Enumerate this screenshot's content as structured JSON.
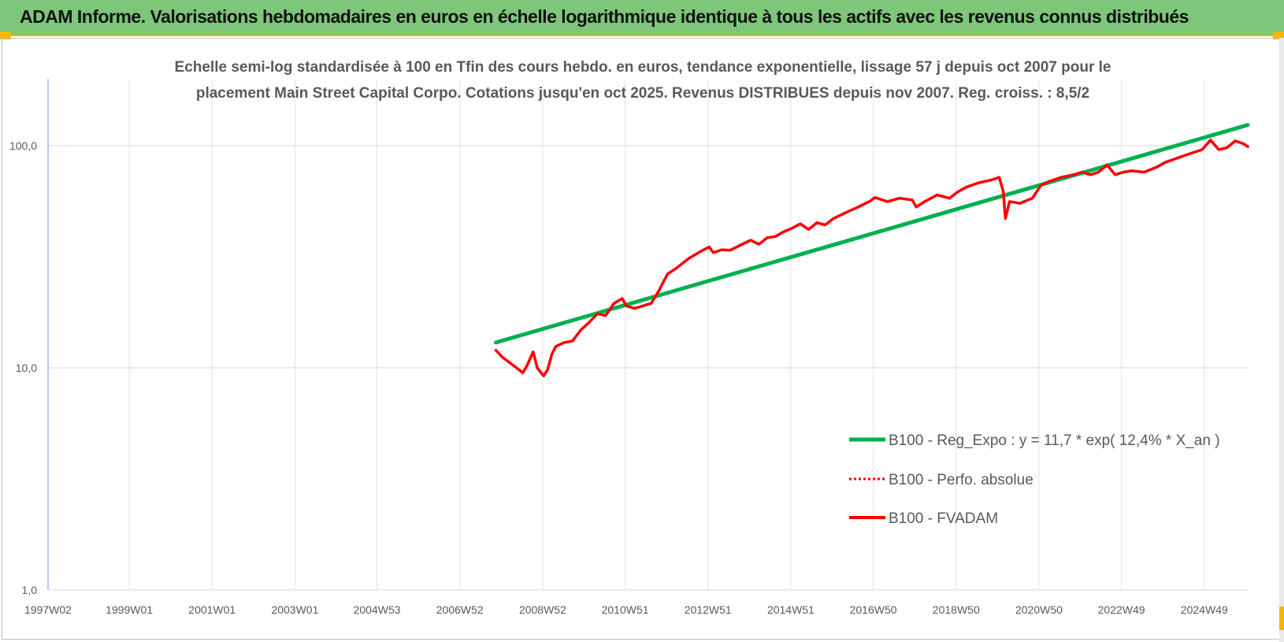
{
  "banner": {
    "title": "ADAM Informe. Valorisations hebdomadaires en euros en échelle logarithmique identique à tous les actifs avec les revenus connus distribués",
    "background": "#7dc67a"
  },
  "chart_data": {
    "type": "line",
    "title_lines": [
      "Echelle semi-log standardisée à 100 en Tfin des cours hebdo. en euros, tendance exponentielle, lissage 57 j depuis oct 2007 pour le",
      "placement Main Street Capital Corpo. Cotations jusqu'en oct 2025. Revenus DISTRIBUES depuis nov 2007. Reg. croiss. : 8,5/2"
    ],
    "xlabel": "",
    "ylabel": "",
    "y_scale": "log",
    "ylim": [
      1,
      200
    ],
    "grid": true,
    "legend_position": "bottom-right",
    "y_ticks": [
      {
        "value": 1,
        "label": "1,0"
      },
      {
        "value": 10,
        "label": "10,0"
      },
      {
        "value": 100,
        "label": "100,0"
      }
    ],
    "x_range": [
      1997.04,
      2026.0
    ],
    "x_ticks": [
      {
        "value": 1997.04,
        "label": "1997W02"
      },
      {
        "value": 1999.0,
        "label": "1999W01"
      },
      {
        "value": 2001.0,
        "label": "2001W01"
      },
      {
        "value": 2003.0,
        "label": "2003W01"
      },
      {
        "value": 2004.98,
        "label": "2004W53"
      },
      {
        "value": 2006.98,
        "label": "2006W52"
      },
      {
        "value": 2008.98,
        "label": "2008W52"
      },
      {
        "value": 2010.97,
        "label": "2010W51"
      },
      {
        "value": 2012.97,
        "label": "2012W51"
      },
      {
        "value": 2014.97,
        "label": "2014W51"
      },
      {
        "value": 2016.96,
        "label": "2016W50"
      },
      {
        "value": 2018.96,
        "label": "2018W50"
      },
      {
        "value": 2020.96,
        "label": "2020W50"
      },
      {
        "value": 2022.95,
        "label": "2022W49"
      },
      {
        "value": 2024.95,
        "label": "2024W49"
      }
    ],
    "series": [
      {
        "name": "B100 - Reg_Expo : y = 11,7 * exp( 12,4% *  X_an )",
        "color": "#00b050",
        "style": "solid",
        "x": [
          2007.85,
          2026.0
        ],
        "y": [
          13.0,
          124.0
        ]
      },
      {
        "name": "B100 - Perfo. absolue",
        "color": "#ff0000",
        "style": "dotted",
        "x": [],
        "y": []
      },
      {
        "name": "B100 - FVADAM",
        "color": "#ff0000",
        "style": "solid",
        "x": [
          2007.85,
          2008.0,
          2008.2,
          2008.35,
          2008.5,
          2008.6,
          2008.75,
          2008.85,
          2009.0,
          2009.1,
          2009.2,
          2009.3,
          2009.5,
          2009.7,
          2009.9,
          2010.1,
          2010.3,
          2010.5,
          2010.7,
          2010.9,
          2011.0,
          2011.2,
          2011.4,
          2011.6,
          2011.8,
          2011.9,
          2012.0,
          2012.2,
          2012.5,
          2012.8,
          2013.0,
          2013.1,
          2013.3,
          2013.5,
          2013.8,
          2014.0,
          2014.2,
          2014.4,
          2014.6,
          2014.8,
          2015.0,
          2015.2,
          2015.4,
          2015.6,
          2015.8,
          2016.0,
          2016.3,
          2016.6,
          2016.9,
          2017.0,
          2017.3,
          2017.6,
          2017.9,
          2018.0,
          2018.2,
          2018.5,
          2018.8,
          2019.0,
          2019.2,
          2019.5,
          2019.8,
          2020.0,
          2020.1,
          2020.15,
          2020.25,
          2020.5,
          2020.8,
          2021.0,
          2021.2,
          2021.5,
          2021.8,
          2022.0,
          2022.2,
          2022.4,
          2022.6,
          2022.8,
          2023.0,
          2023.2,
          2023.5,
          2023.8,
          2024.0,
          2024.3,
          2024.6,
          2024.9,
          2025.1,
          2025.3,
          2025.5,
          2025.7,
          2025.9,
          2026.0
        ],
        "y": [
          12.0,
          11.2,
          10.5,
          10.0,
          9.5,
          10.2,
          11.8,
          10.0,
          9.2,
          9.8,
          11.5,
          12.5,
          13.0,
          13.2,
          14.8,
          16.0,
          17.5,
          17.2,
          19.5,
          20.5,
          19.0,
          18.5,
          19.0,
          19.5,
          22.5,
          24.5,
          26.5,
          28.0,
          31.0,
          33.5,
          35.0,
          33.0,
          34.0,
          33.8,
          36.0,
          37.5,
          36.0,
          38.5,
          39.0,
          41.0,
          42.5,
          44.5,
          42.0,
          45.0,
          44.0,
          47.0,
          50.0,
          53.0,
          56.5,
          58.5,
          56.0,
          58.0,
          57.0,
          53.0,
          56.0,
          60.0,
          58.0,
          62.0,
          65.0,
          68.0,
          70.0,
          72.0,
          62.0,
          47.0,
          56.0,
          55.0,
          58.0,
          66.0,
          69.0,
          72.0,
          74.0,
          76.0,
          74.0,
          76.0,
          82.0,
          74.0,
          76.0,
          77.0,
          76.0,
          80.0,
          84.0,
          88.0,
          92.0,
          96.0,
          106.0,
          96.0,
          98.0,
          105.0,
          102.0,
          99.0
        ]
      }
    ]
  }
}
